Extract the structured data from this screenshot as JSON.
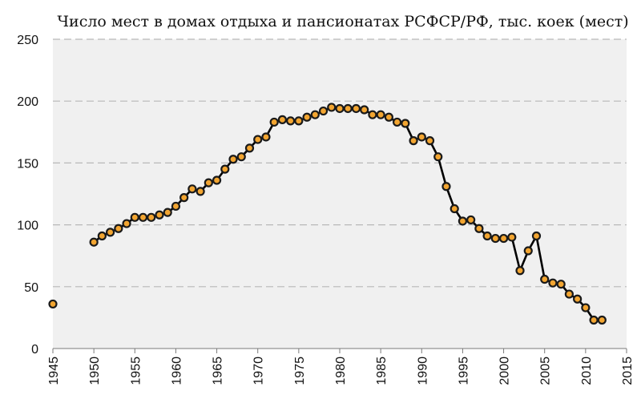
{
  "chart_data": {
    "type": "line",
    "title": "Число мест в домах отдыха и пансионатах РСФСР/РФ, тыс. коек (мест)",
    "xlabel": "",
    "ylabel": "",
    "xlim": [
      1945,
      2015
    ],
    "ylim": [
      0,
      250
    ],
    "x_ticks": [
      "1945",
      "1950",
      "1955",
      "1960",
      "1965",
      "1970",
      "1975",
      "1980",
      "1985",
      "1990",
      "1995",
      "2000",
      "2005",
      "2010",
      "2015"
    ],
    "y_ticks": [
      "0",
      "50",
      "100",
      "150",
      "200",
      "250"
    ],
    "grid": "horizontal-dashed",
    "legend": "none",
    "colors": {
      "line": "#000000",
      "marker_fill": "#f2a531",
      "marker_stroke": "#1a1a1a",
      "plot_bg": "#f0f0f0",
      "grid": "#b8b8b8"
    },
    "series": [
      {
        "points": [
          [
            1945,
            36
          ]
        ]
      },
      {
        "points": [
          [
            1950,
            86
          ],
          [
            1951,
            91
          ],
          [
            1952,
            94
          ],
          [
            1953,
            97
          ],
          [
            1954,
            101
          ],
          [
            1955,
            106
          ],
          [
            1956,
            106
          ],
          [
            1957,
            106
          ],
          [
            1958,
            108
          ],
          [
            1959,
            110
          ],
          [
            1960,
            115
          ],
          [
            1961,
            122
          ],
          [
            1962,
            129
          ],
          [
            1963,
            127
          ],
          [
            1964,
            134
          ],
          [
            1965,
            136
          ],
          [
            1966,
            145
          ],
          [
            1967,
            153
          ],
          [
            1968,
            155
          ],
          [
            1969,
            162
          ],
          [
            1970,
            169
          ],
          [
            1971,
            171
          ],
          [
            1972,
            183
          ],
          [
            1973,
            185
          ],
          [
            1974,
            184
          ],
          [
            1975,
            184
          ],
          [
            1976,
            187
          ],
          [
            1977,
            189
          ],
          [
            1978,
            192
          ],
          [
            1979,
            195
          ],
          [
            1980,
            194
          ],
          [
            1981,
            194
          ],
          [
            1982,
            194
          ],
          [
            1983,
            193
          ],
          [
            1984,
            189
          ],
          [
            1985,
            189
          ],
          [
            1986,
            187
          ],
          [
            1987,
            183
          ],
          [
            1988,
            182
          ],
          [
            1989,
            168
          ],
          [
            1990,
            171
          ],
          [
            1991,
            168
          ],
          [
            1992,
            155
          ],
          [
            1993,
            131
          ],
          [
            1994,
            113
          ],
          [
            1995,
            103
          ],
          [
            1996,
            104
          ],
          [
            1997,
            97
          ],
          [
            1998,
            91
          ],
          [
            1999,
            89
          ],
          [
            2000,
            89
          ],
          [
            2001,
            90
          ],
          [
            2002,
            63
          ],
          [
            2003,
            79
          ],
          [
            2004,
            91
          ],
          [
            2005,
            56
          ],
          [
            2006,
            53
          ],
          [
            2007,
            52
          ],
          [
            2008,
            44
          ],
          [
            2009,
            40
          ],
          [
            2010,
            33
          ],
          [
            2011,
            23
          ],
          [
            2012,
            23
          ]
        ]
      }
    ]
  }
}
